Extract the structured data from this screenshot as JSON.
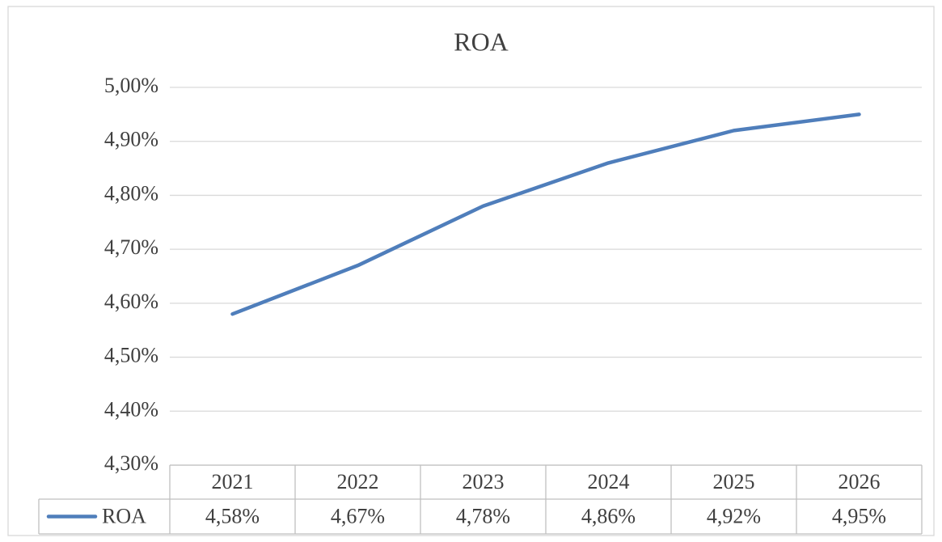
{
  "chart_data": {
    "type": "line",
    "title": "ROA",
    "categories": [
      "2021",
      "2022",
      "2023",
      "2024",
      "2025",
      "2026"
    ],
    "series": [
      {
        "name": "ROA",
        "color": "#4f7ebb",
        "values": [
          4.58,
          4.67,
          4.78,
          4.86,
          4.92,
          4.95
        ],
        "value_labels": [
          "4,58%",
          "4,67%",
          "4,78%",
          "4,86%",
          "4,92%",
          "4,95%"
        ]
      }
    ],
    "ylim": [
      4.3,
      5.0
    ],
    "yticks": [
      {
        "value": 4.3,
        "label": "4,30%"
      },
      {
        "value": 4.4,
        "label": "4,40%"
      },
      {
        "value": 4.5,
        "label": "4,50%"
      },
      {
        "value": 4.6,
        "label": "4,60%"
      },
      {
        "value": 4.7,
        "label": "4,70%"
      },
      {
        "value": 4.8,
        "label": "4,80%"
      },
      {
        "value": 4.9,
        "label": "4,90%"
      },
      {
        "value": 5.0,
        "label": "5,00%"
      }
    ],
    "grid": true,
    "data_table": true
  }
}
